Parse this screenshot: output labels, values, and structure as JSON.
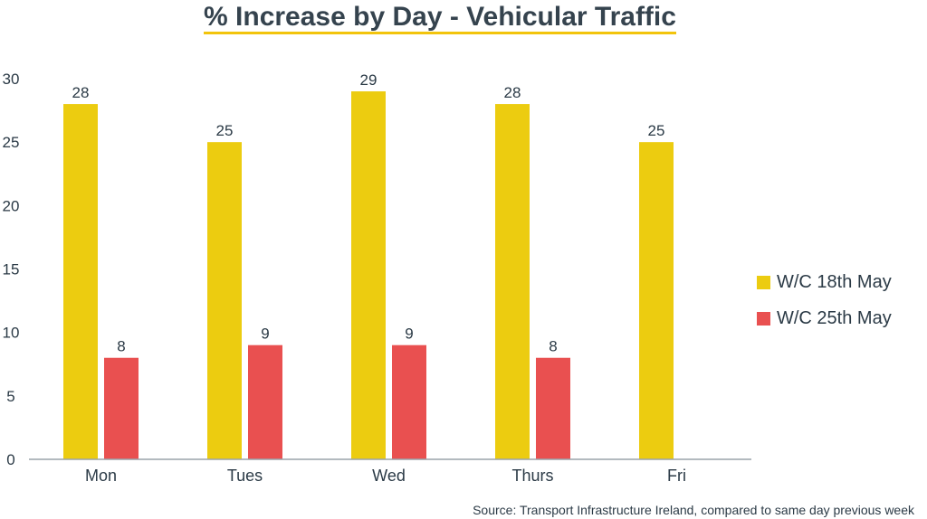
{
  "chart_data": {
    "type": "bar",
    "title": "% Increase by Day - Vehicular Traffic",
    "xlabel": "",
    "ylabel": "",
    "categories": [
      "Mon",
      "Tues",
      "Wed",
      "Thurs",
      "Fri"
    ],
    "series": [
      {
        "name": "W/C 18th May",
        "color": "#eccc10",
        "values": [
          28,
          25,
          29,
          28,
          25
        ]
      },
      {
        "name": "W/C 25th May",
        "color": "#e95050",
        "values": [
          8,
          9,
          9,
          8,
          null
        ]
      }
    ],
    "ylim": [
      0,
      30
    ],
    "yticks": [
      0,
      5,
      10,
      15,
      20,
      25,
      30
    ],
    "grid": false,
    "legend_position": "right",
    "data_labels": true,
    "source": "Source: Transport Infrastructure Ireland, compared to same day previous week"
  }
}
